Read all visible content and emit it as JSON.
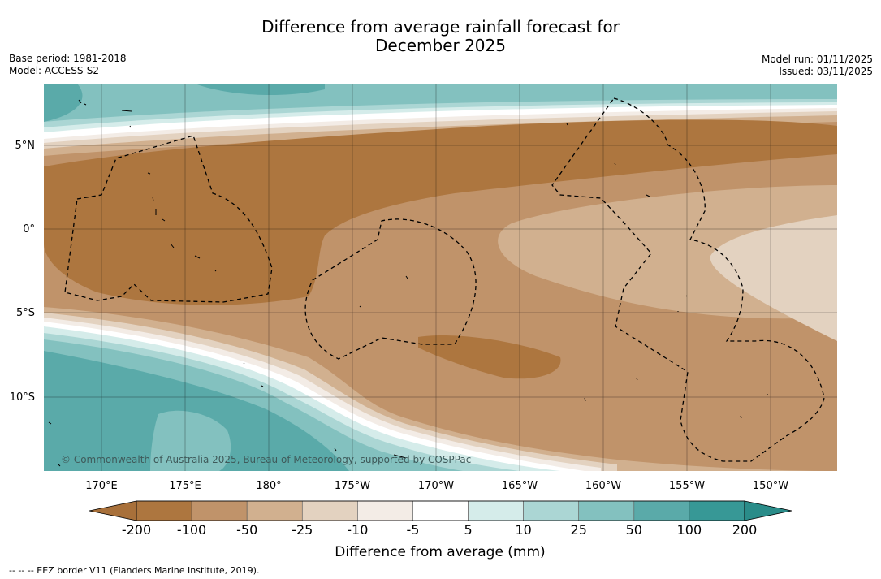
{
  "header": {
    "title_line1": "Difference from average rainfall forecast for",
    "title_line2": "December 2025",
    "base_period": "Base period: 1981-2018",
    "model": "Model: ACCESS-S2",
    "model_run": "Model run: 01/11/2025",
    "issued": "Issued: 03/11/2025"
  },
  "map": {
    "lat_labels": [
      "5°N",
      "0°",
      "5°S",
      "10°S"
    ],
    "lon_labels": [
      "170°E",
      "175°E",
      "180°",
      "175°W",
      "170°W",
      "165°W",
      "160°W",
      "155°W",
      "150°W"
    ],
    "copyright": "© Commonwealth of Australia 2025, Bureau of Meteorology, supported by COSPPac"
  },
  "colorbar": {
    "labels": [
      "-200",
      "-100",
      "-50",
      "-25",
      "-10",
      "-5",
      "5",
      "10",
      "25",
      "50",
      "100",
      "200"
    ],
    "colors": [
      "#a8703a",
      "#ad763f",
      "#c0936a",
      "#d1b08f",
      "#e3d2c0",
      "#f3ece6",
      "#ffffff",
      "#d5ecea",
      "#abd6d4",
      "#83c1bf",
      "#5aaaa9",
      "#379896",
      "#2a8c89"
    ],
    "title": "Difference from average (mm)"
  },
  "footer": {
    "legend": "--  --  -- EEZ border V11 (Flanders Marine Institute, 2019)."
  }
}
